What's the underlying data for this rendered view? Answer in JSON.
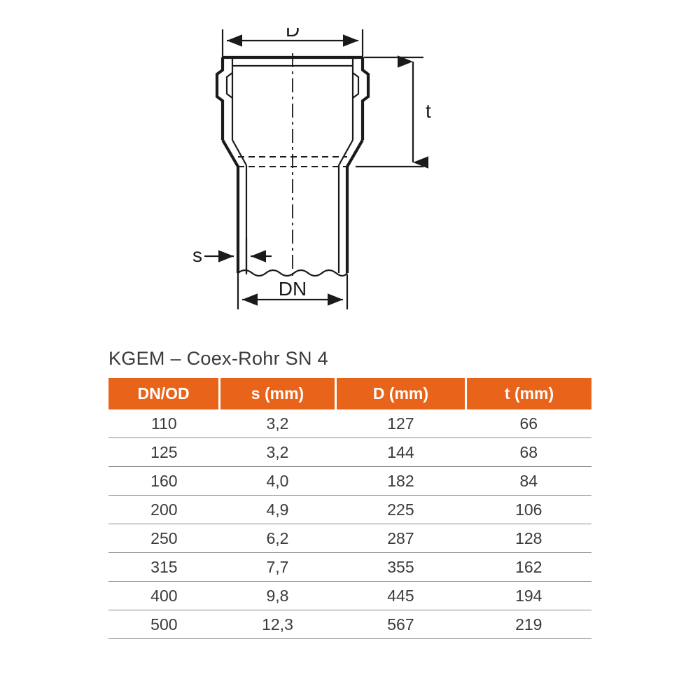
{
  "diagram": {
    "labels": {
      "D": "D",
      "t": "t",
      "s": "s",
      "DN": "DN"
    },
    "stroke_color": "#1a1a1a",
    "thin_stroke": 2.2,
    "thick_stroke": 4.2,
    "text_color": "#1a1a1a",
    "label_fontsize": 28
  },
  "table": {
    "title": "KGEM – Coex-Rohr SN 4",
    "header_bg": "#e8641b",
    "header_fg": "#ffffff",
    "row_border": "#8a8a8a",
    "cell_fg": "#3a3a3a",
    "header_fontsize": 23,
    "cell_fontsize": 23,
    "columns": [
      "DN/OD",
      "s (mm)",
      "D (mm)",
      "t (mm)"
    ],
    "rows": [
      [
        "110",
        "3,2",
        "127",
        "66"
      ],
      [
        "125",
        "3,2",
        "144",
        "68"
      ],
      [
        "160",
        "4,0",
        "182",
        "84"
      ],
      [
        "200",
        "4,9",
        "225",
        "106"
      ],
      [
        "250",
        "6,2",
        "287",
        "128"
      ],
      [
        "315",
        "7,7",
        "355",
        "162"
      ],
      [
        "400",
        "9,8",
        "445",
        "194"
      ],
      [
        "500",
        "12,3",
        "567",
        "219"
      ]
    ]
  }
}
